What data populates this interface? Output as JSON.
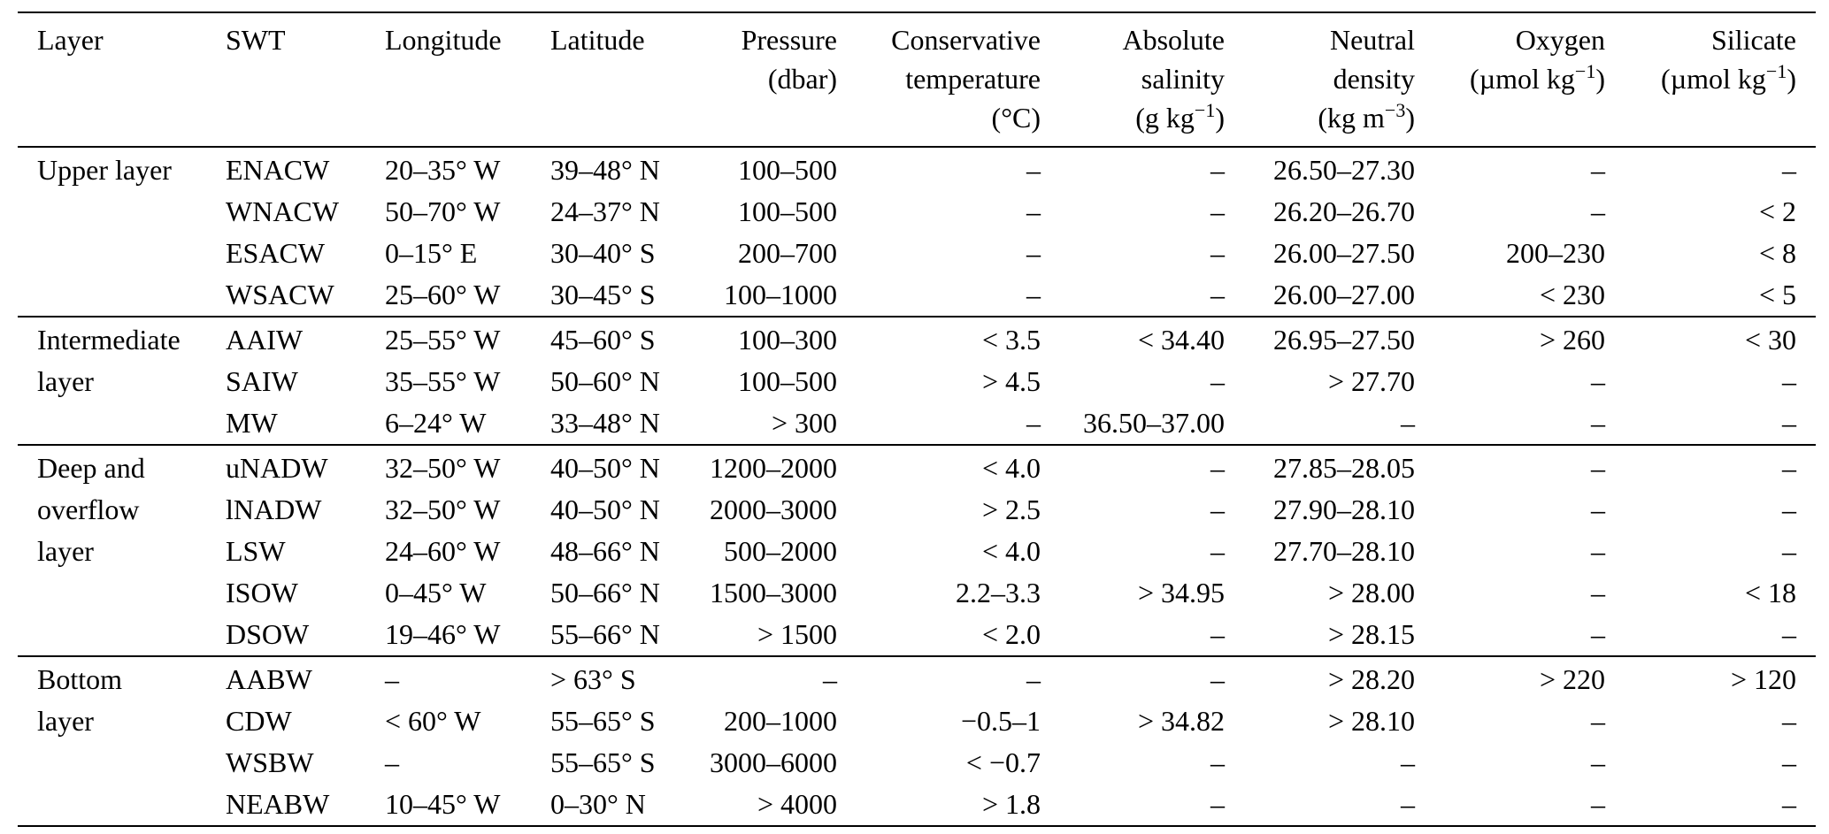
{
  "table": {
    "columns": [
      {
        "id": "layer",
        "align": "left",
        "header": [
          [
            {
              "t": "Layer"
            }
          ]
        ]
      },
      {
        "id": "swt",
        "align": "left",
        "header": [
          [
            {
              "t": "SWT"
            }
          ]
        ]
      },
      {
        "id": "longitude",
        "align": "left",
        "header": [
          [
            {
              "t": "Longitude"
            }
          ]
        ]
      },
      {
        "id": "latitude",
        "align": "left",
        "header": [
          [
            {
              "t": "Latitude"
            }
          ]
        ]
      },
      {
        "id": "pressure",
        "align": "right",
        "header": [
          [
            {
              "t": "Pressure"
            }
          ],
          [
            {
              "t": "(dbar)"
            }
          ]
        ]
      },
      {
        "id": "temperature",
        "align": "right",
        "header": [
          [
            {
              "t": "Conservative"
            }
          ],
          [
            {
              "t": "temperature"
            }
          ],
          [
            {
              "t": "(°C)"
            }
          ]
        ]
      },
      {
        "id": "salinity",
        "align": "right",
        "header": [
          [
            {
              "t": "Absolute"
            }
          ],
          [
            {
              "t": "salinity"
            }
          ],
          [
            {
              "t": "(g kg"
            },
            {
              "t": "−1",
              "sup": true
            },
            {
              "t": ")"
            }
          ]
        ]
      },
      {
        "id": "density",
        "align": "right",
        "header": [
          [
            {
              "t": "Neutral"
            }
          ],
          [
            {
              "t": "density"
            }
          ],
          [
            {
              "t": "(kg m"
            },
            {
              "t": "−3",
              "sup": true
            },
            {
              "t": ")"
            }
          ]
        ]
      },
      {
        "id": "oxygen",
        "align": "right",
        "header": [
          [
            {
              "t": "Oxygen"
            }
          ],
          [
            {
              "t": "(µmol kg"
            },
            {
              "t": "−1",
              "sup": true
            },
            {
              "t": ")"
            }
          ]
        ]
      },
      {
        "id": "silicate",
        "align": "right",
        "header": [
          [
            {
              "t": "Silicate"
            }
          ],
          [
            {
              "t": "(µmol kg"
            },
            {
              "t": "−1",
              "sup": true
            },
            {
              "t": ")"
            }
          ]
        ]
      }
    ],
    "groups": [
      {
        "layer": "Upper layer",
        "rows": [
          {
            "swt": "ENACW",
            "longitude": "20–35° W",
            "latitude": "39–48° N",
            "pressure": "100–500",
            "temperature": "–",
            "salinity": "–",
            "density": "26.50–27.30",
            "oxygen": "–",
            "silicate": "–"
          },
          {
            "swt": "WNACW",
            "longitude": "50–70° W",
            "latitude": "24–37° N",
            "pressure": "100–500",
            "temperature": "–",
            "salinity": "–",
            "density": "26.20–26.70",
            "oxygen": "–",
            "silicate": "< 2"
          },
          {
            "swt": "ESACW",
            "longitude": "0–15° E",
            "latitude": "30–40° S",
            "pressure": "200–700",
            "temperature": "–",
            "salinity": "–",
            "density": "26.00–27.50",
            "oxygen": "200–230",
            "silicate": "< 8"
          },
          {
            "swt": "WSACW",
            "longitude": "25–60° W",
            "latitude": "30–45° S",
            "pressure": "100–1000",
            "temperature": "–",
            "salinity": "–",
            "density": "26.00–27.00",
            "oxygen": "< 230",
            "silicate": "< 5"
          }
        ]
      },
      {
        "layer": "Intermediate\nlayer",
        "rows": [
          {
            "swt": "AAIW",
            "longitude": "25–55° W",
            "latitude": "45–60° S",
            "pressure": "100–300",
            "temperature": "< 3.5",
            "salinity": "< 34.40",
            "density": "26.95–27.50",
            "oxygen": "> 260",
            "silicate": "< 30"
          },
          {
            "swt": "SAIW",
            "longitude": "35–55° W",
            "latitude": "50–60° N",
            "pressure": "100–500",
            "temperature": "> 4.5",
            "salinity": "–",
            "density": "> 27.70",
            "oxygen": "–",
            "silicate": "–"
          },
          {
            "swt": "MW",
            "longitude": "6–24° W",
            "latitude": "33–48° N",
            "pressure": "> 300",
            "temperature": "–",
            "salinity": "36.50–37.00",
            "density": "–",
            "oxygen": "–",
            "silicate": "–"
          }
        ]
      },
      {
        "layer": "Deep and\noverflow\nlayer",
        "rows": [
          {
            "swt": "uNADW",
            "longitude": "32–50° W",
            "latitude": "40–50° N",
            "pressure": "1200–2000",
            "temperature": "< 4.0",
            "salinity": "–",
            "density": "27.85–28.05",
            "oxygen": "–",
            "silicate": "–"
          },
          {
            "swt": "lNADW",
            "longitude": "32–50° W",
            "latitude": "40–50° N",
            "pressure": "2000–3000",
            "temperature": "> 2.5",
            "salinity": "–",
            "density": "27.90–28.10",
            "oxygen": "–",
            "silicate": "–"
          },
          {
            "swt": "LSW",
            "longitude": "24–60° W",
            "latitude": "48–66° N",
            "pressure": "500–2000",
            "temperature": "< 4.0",
            "salinity": "–",
            "density": "27.70–28.10",
            "oxygen": "–",
            "silicate": "–"
          },
          {
            "swt": "ISOW",
            "longitude": "0–45° W",
            "latitude": "50–66° N",
            "pressure": "1500–3000",
            "temperature": "2.2–3.3",
            "salinity": "> 34.95",
            "density": "> 28.00",
            "oxygen": "–",
            "silicate": "< 18"
          },
          {
            "swt": "DSOW",
            "longitude": "19–46° W",
            "latitude": "55–66° N",
            "pressure": "> 1500",
            "temperature": "< 2.0",
            "salinity": "–",
            "density": "> 28.15",
            "oxygen": "–",
            "silicate": "–"
          }
        ]
      },
      {
        "layer": "Bottom\nlayer",
        "rows": [
          {
            "swt": "AABW",
            "longitude": "–",
            "latitude": "> 63° S",
            "pressure": "–",
            "temperature": "–",
            "salinity": "–",
            "density": "> 28.20",
            "oxygen": "> 220",
            "silicate": "> 120"
          },
          {
            "swt": "CDW",
            "longitude": "< 60° W",
            "latitude": "55–65° S",
            "pressure": "200–1000",
            "temperature": "−0.5–1",
            "salinity": "> 34.82",
            "density": "> 28.10",
            "oxygen": "–",
            "silicate": "–"
          },
          {
            "swt": "WSBW",
            "longitude": "–",
            "latitude": "55–65° S",
            "pressure": "3000–6000",
            "temperature": "< −0.7",
            "salinity": "–",
            "density": "–",
            "oxygen": "–",
            "silicate": "–"
          },
          {
            "swt": "NEABW",
            "longitude": "10–45° W",
            "latitude": "0–30° N",
            "pressure": "> 4000",
            "temperature": "> 1.8",
            "salinity": "–",
            "density": "–",
            "oxygen": "–",
            "silicate": "–"
          }
        ]
      }
    ]
  }
}
